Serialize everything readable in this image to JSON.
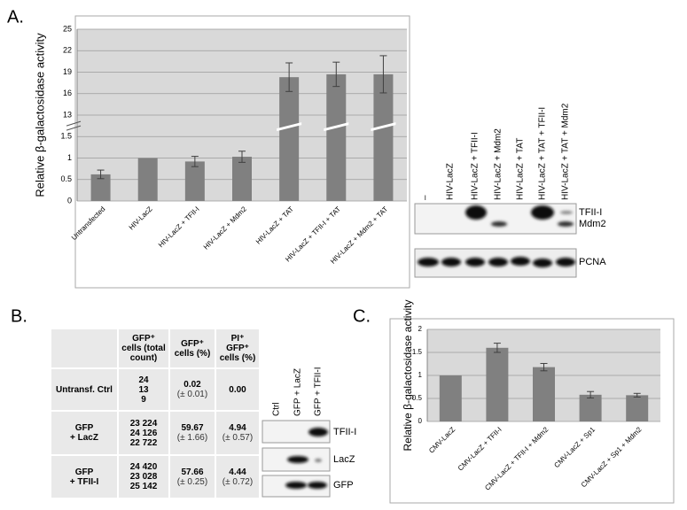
{
  "panel_labels": [
    "A.",
    "B.",
    "C."
  ],
  "chart_data": [
    {
      "type": "bar",
      "y_label": "Relative β-galactosidase activity",
      "categories": [
        "Untransfected",
        "HIV-LacZ",
        "HIV-LacZ + TFII-I",
        "HIV-LacZ + Mdm2",
        "HIV-LacZ + TAT",
        "HIV-LacZ + TFII-I + TAT",
        "HIV-LacZ + Mdm2 + TAT"
      ],
      "values": [
        0.62,
        1.0,
        0.92,
        1.03,
        18.3,
        18.7,
        18.7
      ],
      "errors": [
        0.1,
        null,
        0.12,
        0.13,
        2.0,
        1.7,
        2.6
      ],
      "color": "#808080",
      "ylim": [
        0,
        25
      ],
      "yticks": [
        0,
        0.5,
        1,
        1.5,
        13,
        16,
        19,
        22,
        25
      ],
      "axis_break": true,
      "grid": true
    },
    {
      "type": "bar",
      "y_label": "Relative β-galactosidase activity",
      "categories": [
        "CMV-LacZ",
        "CMV-LacZ + TFII-I",
        "CMV-LacZ + TFII-I + Mdm2",
        "CMV-LacZ + Sp1",
        "CMV-LacZ + Sp1 + Mdm2"
      ],
      "values": [
        1.0,
        1.6,
        1.18,
        0.58,
        0.57
      ],
      "errors": [
        null,
        0.1,
        0.08,
        0.07,
        0.04
      ],
      "color": "#808080",
      "ylim": [
        0,
        2
      ],
      "yticks": [
        0,
        0.5,
        1,
        1.5,
        2
      ],
      "axis_break": false,
      "grid": true
    }
  ],
  "blot_a": {
    "lanes": [
      "–",
      "HIV-LacZ",
      "HIV-LacZ + TFII-I",
      "HIV-LacZ + Mdm2",
      "HIV-LacZ + TAT",
      "HIV-LacZ + TAT + TFII-I",
      "HIV-LacZ + TAT + Mdm2"
    ],
    "bands": [
      "TFII-I",
      "Mdm2",
      "PCNA"
    ]
  },
  "blot_b": {
    "lanes": [
      "Ctrl",
      "GFP + LacZ",
      "GFP + TFII-I"
    ],
    "bands": [
      "TFII-I",
      "LacZ",
      "GFP"
    ]
  },
  "table": {
    "header": [
      "GFP⁺ cells (total count)",
      "GFP⁺ cells (%)",
      "PI⁺ GFP⁺ cells (%)"
    ],
    "rows": [
      {
        "label": [
          "Untransf. Ctrl"
        ],
        "counts": [
          "24",
          "13",
          "9"
        ],
        "gfp": "0.02",
        "gfp_sd": "(± 0.01)",
        "pi": "0.00"
      },
      {
        "label": [
          "GFP",
          "+ LacZ"
        ],
        "counts": [
          "23 224",
          "24 126",
          "22 722"
        ],
        "gfp": "59.67",
        "gfp_sd": "(± 1.66)",
        "pi": "4.94",
        "pi_sd": "(± 0.57)"
      },
      {
        "label": [
          "GFP",
          "+ TFII-I"
        ],
        "counts": [
          "24 420",
          "23 028",
          "25 142"
        ],
        "gfp": "57.66",
        "gfp_sd": "(± 0.25)",
        "pi": "4.44",
        "pi_sd": "(± 0.72)"
      }
    ]
  }
}
